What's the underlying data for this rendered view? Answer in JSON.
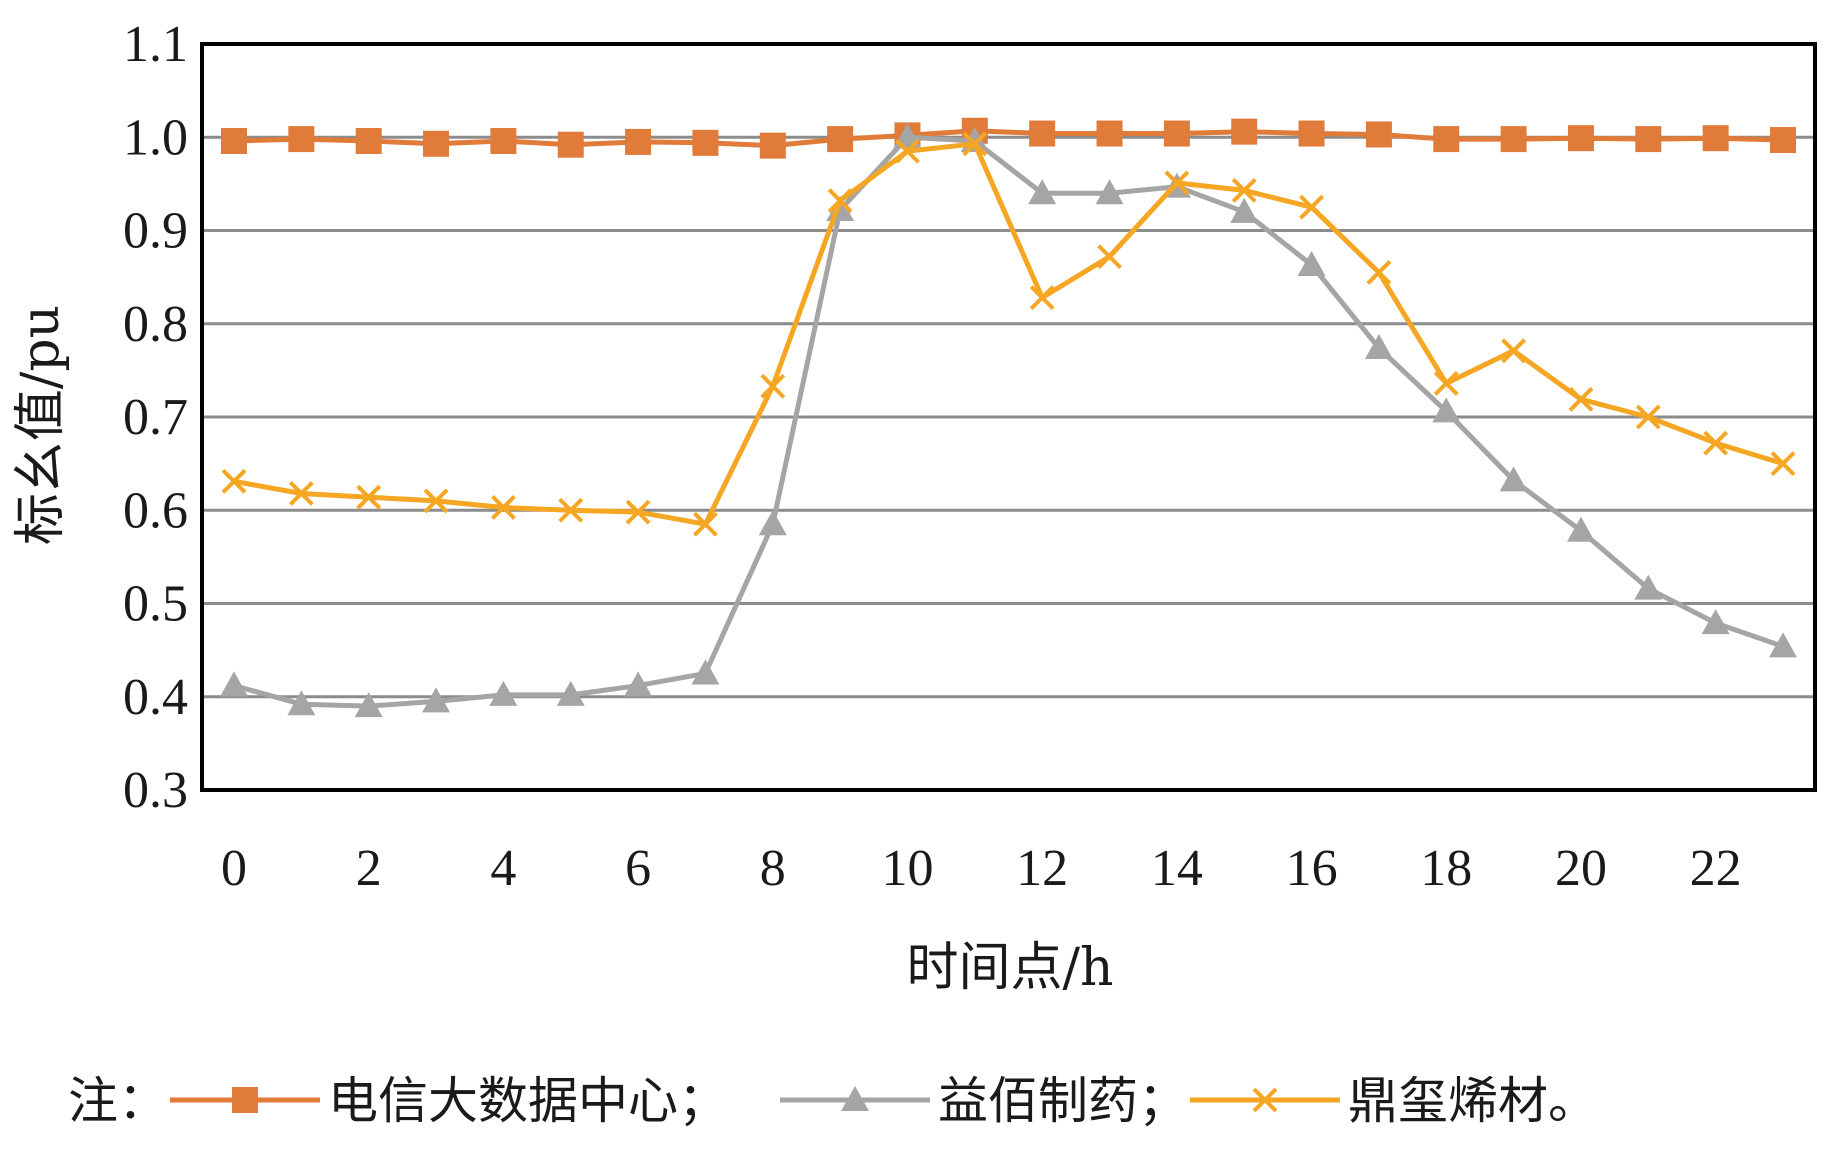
{
  "chart_data": {
    "type": "line",
    "title": "",
    "xlabel": "时间点/h",
    "ylabel": "标幺值/pu",
    "xlim": [
      0,
      23
    ],
    "ylim": [
      0.3,
      1.1
    ],
    "x": [
      0,
      1,
      2,
      3,
      4,
      5,
      6,
      7,
      8,
      9,
      10,
      11,
      12,
      13,
      14,
      15,
      16,
      17,
      18,
      19,
      20,
      21,
      22,
      23
    ],
    "x_ticks": [
      "0",
      "2",
      "4",
      "6",
      "8",
      "10",
      "12",
      "14",
      "16",
      "18",
      "20",
      "22"
    ],
    "x_tick_values": [
      0,
      2,
      4,
      6,
      8,
      10,
      12,
      14,
      16,
      18,
      20,
      22
    ],
    "y_ticks": [
      "0.3",
      "0.4",
      "0.5",
      "0.6",
      "0.7",
      "0.8",
      "0.9",
      "1.0",
      "1.1"
    ],
    "y_tick_values": [
      0.3,
      0.4,
      0.5,
      0.6,
      0.7,
      0.8,
      0.9,
      1.0,
      1.1
    ],
    "grid": true,
    "legend_position": "bottom",
    "legend_prefix": "注：",
    "legend_separator": "；",
    "legend_suffix": "。",
    "series": [
      {
        "name": "电信大数据中心",
        "color": "#E07B39",
        "marker": "square",
        "values": [
          0.996,
          0.998,
          0.996,
          0.993,
          0.996,
          0.992,
          0.995,
          0.994,
          0.991,
          0.998,
          1.002,
          1.007,
          1.004,
          1.004,
          1.004,
          1.006,
          1.004,
          1.003,
          0.998,
          0.998,
          0.999,
          0.998,
          0.999,
          0.997
        ]
      },
      {
        "name": "益佰制药",
        "color": "#A5A5A5",
        "marker": "triangle",
        "values": [
          0.412,
          0.392,
          0.39,
          0.395,
          0.402,
          0.402,
          0.412,
          0.425,
          0.585,
          0.922,
          1.0,
          0.996,
          0.94,
          0.94,
          0.947,
          0.92,
          0.863,
          0.774,
          0.706,
          0.632,
          0.578,
          0.516,
          0.479,
          0.454
        ]
      },
      {
        "name": "鼎玺烯材",
        "color": "#F5A623",
        "marker": "x",
        "values": [
          0.631,
          0.618,
          0.614,
          0.61,
          0.603,
          0.6,
          0.598,
          0.585,
          0.733,
          0.932,
          0.985,
          0.993,
          0.828,
          0.872,
          0.951,
          0.943,
          0.925,
          0.855,
          0.736,
          0.771,
          0.719,
          0.7,
          0.672,
          0.65
        ]
      }
    ]
  }
}
